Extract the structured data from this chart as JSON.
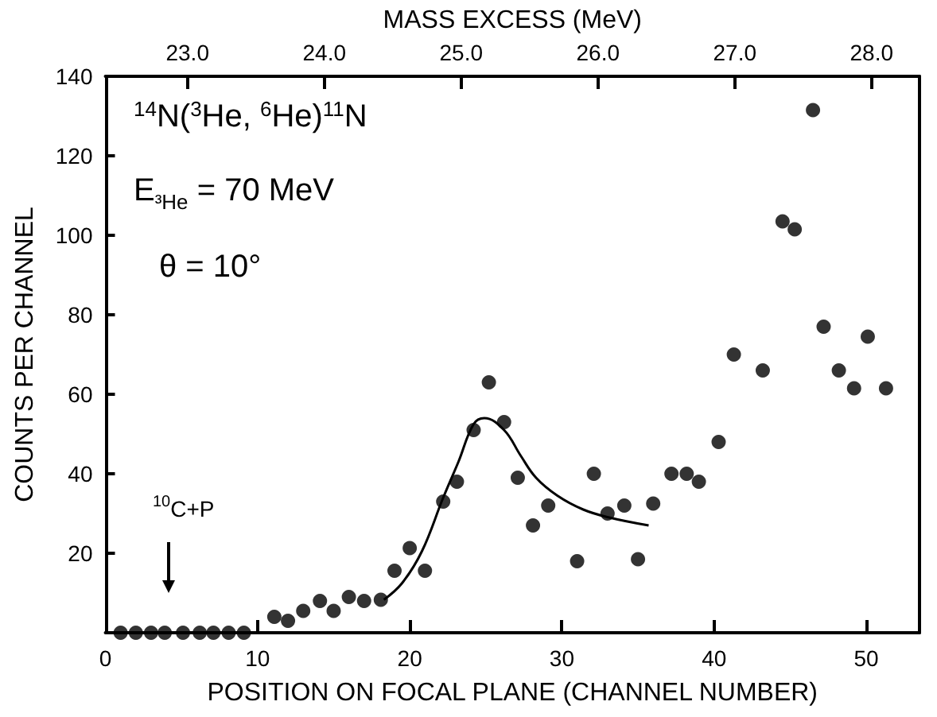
{
  "chart_data": {
    "type": "scatter",
    "xlabel": "POSITION ON FOCAL PLANE (CHANNEL NUMBER)",
    "ylabel": "COUNTS PER CHANNEL",
    "x2label": "MASS EXCESS (MeV)",
    "xlim": [
      0,
      53.5
    ],
    "xticks": [
      0,
      10,
      20,
      30,
      40,
      50
    ],
    "ylim": [
      0,
      140
    ],
    "yticks": [
      {
        "value": 0,
        "label": null
      },
      20,
      40,
      60,
      80,
      100,
      120,
      140
    ],
    "x2lim": [
      22.4,
      28.35
    ],
    "x2ticks": [
      {
        "value": 23,
        "label": "23.0"
      },
      {
        "value": 24,
        "label": "24.0"
      },
      {
        "value": 25,
        "label": "25.0"
      },
      {
        "value": 26,
        "label": "26.0"
      },
      {
        "value": 27,
        "label": "27.0"
      },
      {
        "value": 28,
        "label": "28.0"
      }
    ],
    "grid": false,
    "marker": "circle",
    "annotations": [
      "$^{14}$N($^{3}$He, $^{6}$He)$^{11}$N",
      "E$_{³He}$ = 70 MeV",
      "θ = 10°",
      "$^{10}$C+P"
    ],
    "series": [
      {
        "color": "#000000",
        "x": [
          1,
          2,
          3,
          3.9,
          5.1,
          6.2,
          7.1,
          8.1,
          9.1,
          11.1,
          12,
          13,
          14.1,
          15,
          16,
          17,
          18.1,
          19,
          20,
          21,
          22.2,
          23.1,
          24.2,
          25.2,
          26.2,
          27.1,
          28.1,
          29.1,
          31,
          32.1,
          33,
          34.1,
          35,
          36,
          37.2,
          38.2,
          39,
          40.3,
          41.3,
          43.2,
          44.5,
          45.3,
          46.5,
          47.2,
          48.2,
          49.2,
          50.1,
          51.3
        ],
        "values": [
          0,
          0,
          0,
          0,
          0,
          0,
          0,
          0,
          0,
          4,
          3,
          5.5,
          8,
          5.5,
          9,
          8,
          8.3,
          15.6,
          21.3,
          15.6,
          33,
          38,
          51,
          63,
          53,
          39,
          27,
          32,
          18,
          40,
          30,
          32,
          18.5,
          32.5,
          40,
          40,
          38,
          48,
          70,
          66,
          103.5,
          101.5,
          131.5,
          77,
          66,
          61.5,
          74.5,
          61.5
        ]
      },
      {
        "type": "line",
        "color": "#000000",
        "marker": "none",
        "x": [
          18.3,
          19.5,
          20.8,
          22.2,
          23.2,
          24.2,
          24.9,
          26.2,
          27.3,
          28.3,
          29.7,
          31.4,
          33.1,
          35.7
        ],
        "values": [
          8.3,
          12.5,
          20.5,
          34,
          43,
          52.5,
          54,
          51,
          44.5,
          39,
          34.5,
          31,
          29,
          27
        ]
      }
    ]
  }
}
